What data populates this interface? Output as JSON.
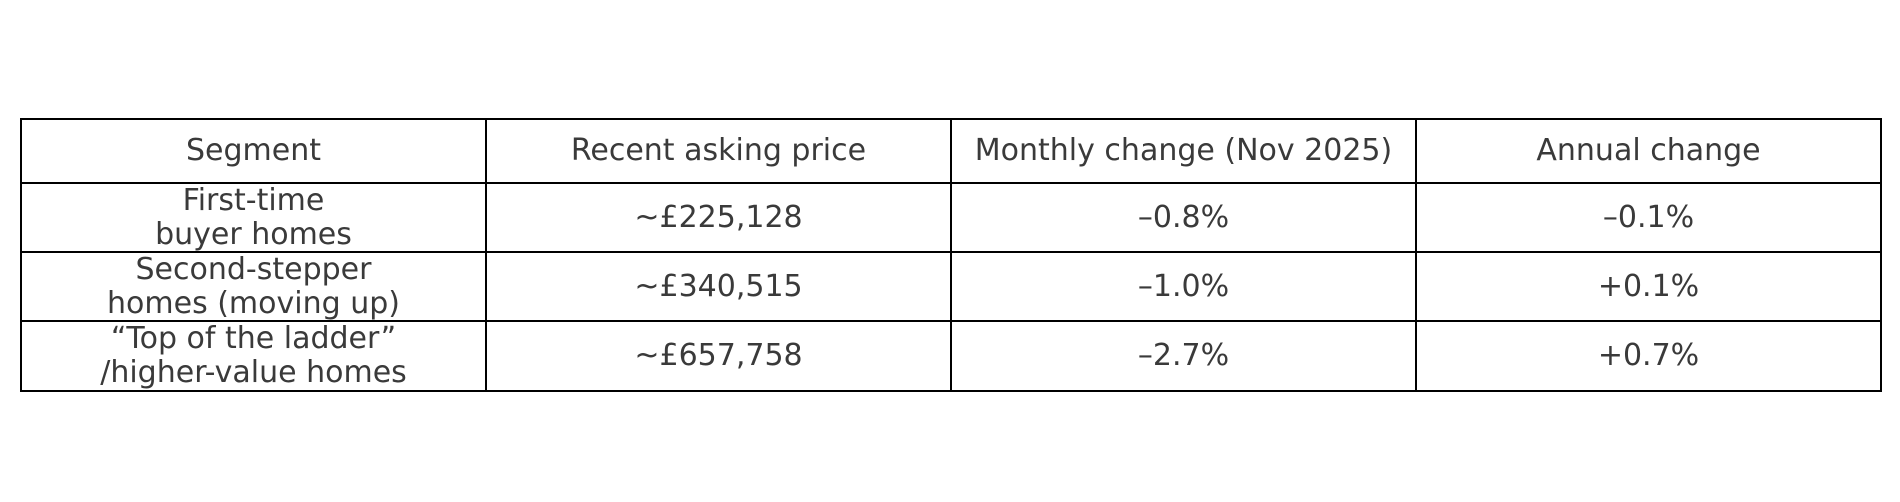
{
  "chart_data": {
    "type": "table",
    "columns": [
      "Segment",
      "Recent asking price",
      "Monthly change (Nov 2025)",
      "Annual change"
    ],
    "rows": [
      [
        "First-time\nbuyer homes",
        "~£225,128",
        "–0.8%",
        "–0.1%"
      ],
      [
        "Second-stepper\nhomes (moving up)",
        "~£340,515",
        "–1.0%",
        "+0.1%"
      ],
      [
        "“Top of the ladder”\n/higher-value homes",
        "~£657,758",
        "–2.7%",
        "+0.7%"
      ]
    ],
    "layout": {
      "grid": "full-borders",
      "text_align": "center"
    }
  },
  "colors": {
    "background": "#ffffff",
    "border": "#000000",
    "text": "#3a3a3a"
  }
}
